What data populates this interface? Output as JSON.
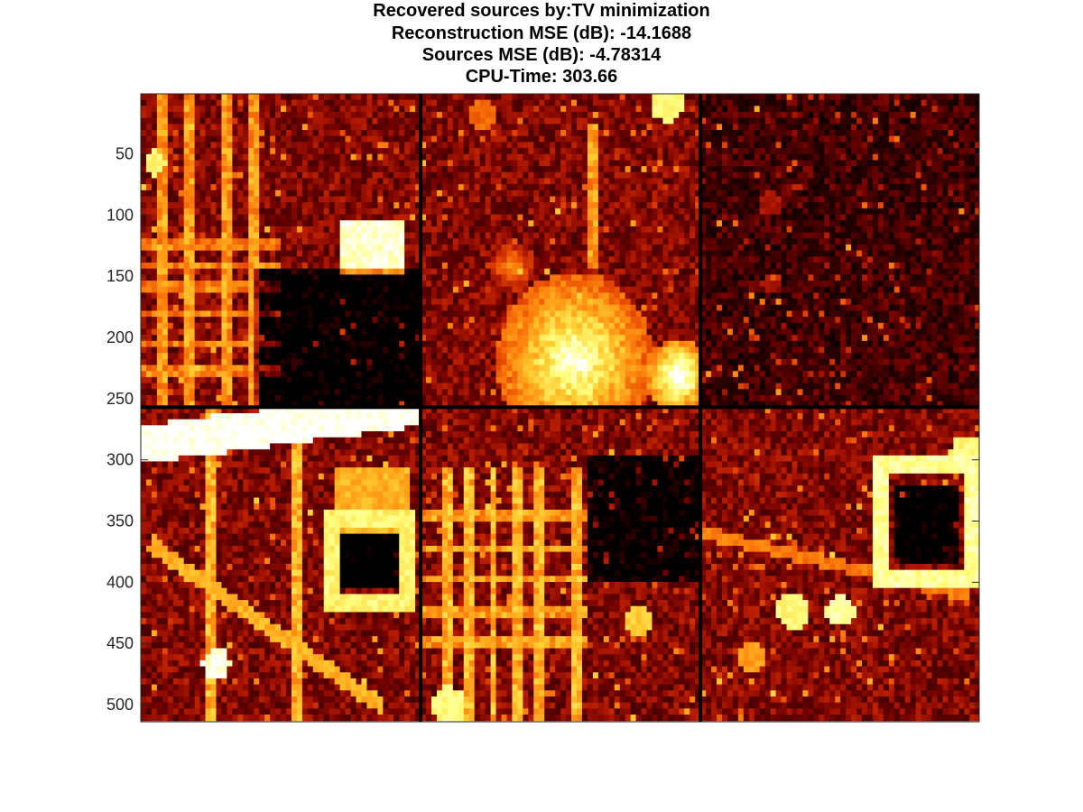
{
  "title_lines": [
    "Recovered sources by:TV minimization",
    "Reconstruction MSE (dB): -14.1688",
    "Sources MSE (dB): -4.78314",
    "CPU-Time: 303.66"
  ],
  "colormap": {
    "name": "hot",
    "stops": [
      "#000000",
      "#2a0000",
      "#6a0000",
      "#b01800",
      "#e84a00",
      "#ff8a10",
      "#ffcc30",
      "#ffff80",
      "#ffffff"
    ]
  },
  "chart_data": {
    "type": "heatmap",
    "title": "Recovered sources by:TV minimization / Reconstruction MSE (dB): -14.1688 / Sources MSE (dB): -4.78314 / CPU-Time: 303.66",
    "xlabel": "",
    "ylabel": "",
    "ylim": [
      1,
      514
    ],
    "xlim": [
      1,
      768
    ],
    "yticks": [
      50,
      100,
      150,
      200,
      250,
      300,
      350,
      400,
      450,
      500
    ],
    "xticks": [],
    "grid": false,
    "layout": {
      "rows": 2,
      "cols": 3,
      "panel_size": [
        256,
        256
      ],
      "separator_color": "#000000"
    },
    "panels": [
      {
        "row": 0,
        "col": 0,
        "description": "urban grid, bright block top-right"
      },
      {
        "row": 0,
        "col": 1,
        "description": "bright cluster bottom-center"
      },
      {
        "row": 0,
        "col": 2,
        "description": "mostly dark, faint features"
      },
      {
        "row": 1,
        "col": 0,
        "description": "bright diagonal road and square outline"
      },
      {
        "row": 1,
        "col": 1,
        "description": "dense grid left, mixed"
      },
      {
        "row": 1,
        "col": 2,
        "description": "square outline, scattered bright spots"
      }
    ]
  }
}
